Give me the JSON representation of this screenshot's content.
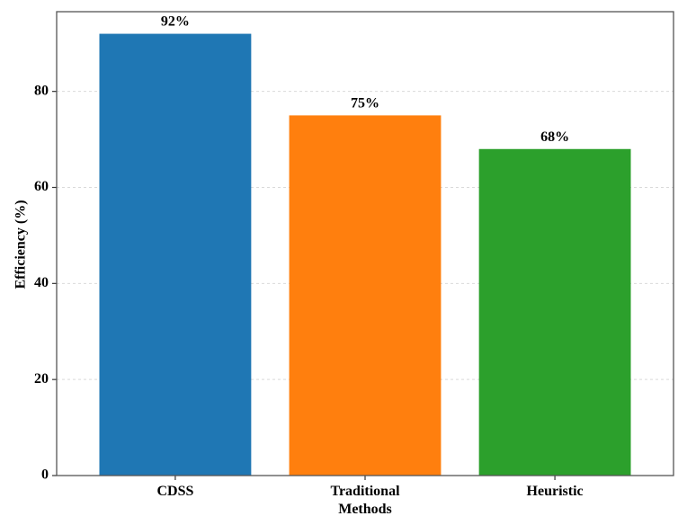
{
  "chart_data": {
    "type": "bar",
    "categories": [
      "CDSS",
      "Traditional Methods",
      "Heuristic"
    ],
    "category_label_lines": [
      [
        "CDSS"
      ],
      [
        "Traditional",
        "Methods"
      ],
      [
        "Heuristic"
      ]
    ],
    "values": [
      92,
      75,
      68
    ],
    "data_labels": [
      "92%",
      "75%",
      "68%"
    ],
    "colors": [
      "#1f77b4",
      "#ff7f0e",
      "#2ca02c"
    ],
    "title": "",
    "xlabel": "",
    "ylabel": "Efficiency (%)",
    "ylim": [
      0,
      96.6
    ],
    "yticks": [
      0,
      20,
      40,
      60,
      80
    ],
    "ytick_labels": [
      "0",
      "20",
      "40",
      "60",
      "80"
    ],
    "grid": "horizontal dashed",
    "legend": "none"
  }
}
